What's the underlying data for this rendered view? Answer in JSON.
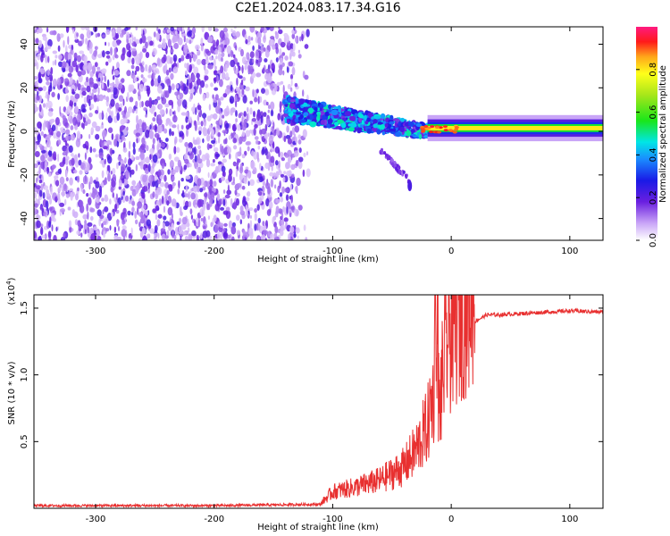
{
  "title": "C2E1.2024.083.17.34.G16",
  "colors": {
    "spectrum_purple": "#6a1fe0",
    "snr_line": "#e83030",
    "frame": "#000000"
  },
  "chart_data": [
    {
      "type": "heatmap",
      "description_of_content": "",
      "xlabel": "Height of straight line (km)",
      "ylabel": "Frequency (Hz)",
      "xlim": [
        -352,
        128
      ],
      "ylim": [
        -50,
        48
      ],
      "xticks": [
        -300,
        -200,
        -100,
        0,
        100
      ],
      "xtick_labels": [
        "-300",
        "-200",
        "-100",
        "0",
        "100"
      ],
      "yticks": [
        -40,
        -20,
        0,
        20,
        40
      ],
      "ytick_labels": [
        "-40",
        "-20",
        "0",
        "20",
        "40"
      ],
      "colorbar": {
        "label": "Normalized spectral amplitude",
        "range": [
          0.0,
          1.0
        ],
        "ticks": [
          0.0,
          0.2,
          0.4,
          0.6,
          0.8
        ],
        "tick_labels": [
          "0.0",
          "0.2",
          "0.4",
          "0.6",
          "0.8"
        ]
      },
      "regions": [
        {
          "x_range": [
            -352,
            -130
          ],
          "freq_range": [
            -50,
            48
          ],
          "amplitude": 0.1
        },
        {
          "x_range": [
            -140,
            -20
          ],
          "freq_center_at_start": 10,
          "freq_center_at_end": 0,
          "amplitude": 0.35
        },
        {
          "x_range": [
            -40,
            -33
          ],
          "freq_center": -25,
          "amplitude": 0.1
        },
        {
          "x_range": [
            -20,
            128
          ],
          "freq_center": 1.5,
          "amplitude": 0.9
        }
      ],
      "grid": false
    },
    {
      "type": "line",
      "xlabel": "Height of straight line (km)",
      "ylabel": "SNR (10 * v/v)",
      "y_multiplier_label": "(x10",
      "y_multiplier_exp": "4",
      "xlim": [
        -352,
        128
      ],
      "ylim": [
        0,
        1.6
      ],
      "xticks": [
        -300,
        -200,
        -100,
        0,
        100
      ],
      "xtick_labels": [
        "-300",
        "-200",
        "-100",
        "0",
        "100"
      ],
      "yticks": [
        0.5,
        1.0,
        1.5
      ],
      "ytick_labels": [
        "0.5",
        "1.0",
        "1.5"
      ],
      "series": [
        {
          "x_keypoints": [
            -352,
            -200,
            -110,
            -100,
            -80,
            -60,
            -40,
            -30,
            -20,
            -15,
            -12,
            -10,
            -5,
            0,
            10,
            20,
            30,
            40,
            60,
            80,
            100,
            128
          ],
          "y_keypoints": [
            0.02,
            0.02,
            0.03,
            0.1,
            0.13,
            0.17,
            0.25,
            0.35,
            0.5,
            0.7,
            0.9,
            0.6,
            0.95,
            1.1,
            1.25,
            1.4,
            1.45,
            1.45,
            1.46,
            1.47,
            1.48,
            1.47
          ]
        }
      ],
      "grid": false
    }
  ]
}
